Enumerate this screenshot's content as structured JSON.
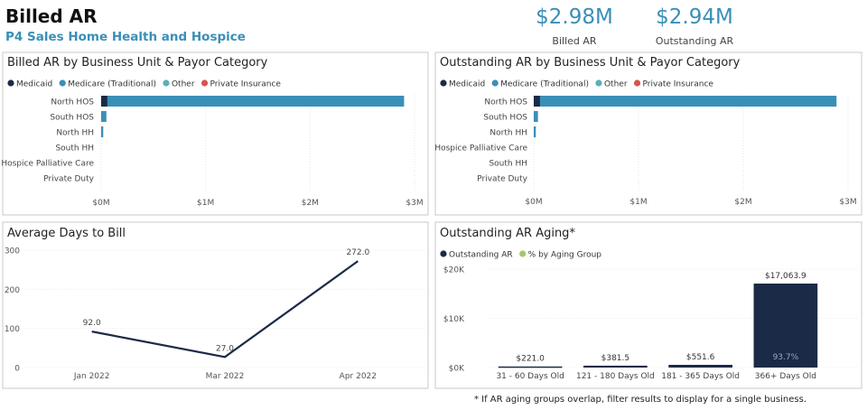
{
  "header": {
    "title": "Billed AR",
    "subtitle": "P4 Sales Home Health and Hospice"
  },
  "kpis": [
    {
      "value": "$2.98M",
      "label": "Billed AR"
    },
    {
      "value": "$2.94M",
      "label": "Outstanding AR"
    }
  ],
  "chart_data": [
    {
      "type": "hbar_stacked",
      "title": "Billed AR by Business Unit & Payor Category",
      "categories": [
        "North HOS",
        "South HOS",
        "North HH",
        "South HH",
        "Hospice Palliative Care",
        "Private Duty"
      ],
      "series": [
        {
          "name": "Medicaid",
          "color": "#1b2a47",
          "values": [
            0.06,
            0,
            0,
            0,
            0,
            0
          ]
        },
        {
          "name": "Medicare (Traditional)",
          "color": "#3a8fb7",
          "values": [
            2.84,
            0.05,
            0.02,
            0,
            0,
            0
          ]
        },
        {
          "name": "Other",
          "color": "#5ab0b8",
          "values": [
            0,
            0,
            0,
            0,
            0,
            0
          ]
        },
        {
          "name": "Private Insurance",
          "color": "#d9534f",
          "values": [
            0,
            0,
            0,
            0,
            0,
            0
          ]
        }
      ],
      "xlim": [
        0,
        3
      ],
      "xticks": [
        {
          "value": 0,
          "label": "$0M"
        },
        {
          "value": 1,
          "label": "$1M"
        },
        {
          "value": 2,
          "label": "$2M"
        },
        {
          "value": 3,
          "label": "$3M"
        }
      ],
      "grid": true
    },
    {
      "type": "hbar_stacked",
      "title": "Outstanding AR by Business Unit & Payor Category",
      "categories": [
        "North HOS",
        "South HOS",
        "North HH",
        "Hospice Palliative Care",
        "South HH",
        "Private Duty"
      ],
      "series": [
        {
          "name": "Medicaid",
          "color": "#1b2a47",
          "values": [
            0.06,
            0,
            0,
            0,
            0,
            0
          ]
        },
        {
          "name": "Medicare (Traditional)",
          "color": "#3a8fb7",
          "values": [
            2.83,
            0.04,
            0.02,
            0,
            0,
            0
          ]
        },
        {
          "name": "Other",
          "color": "#5ab0b8",
          "values": [
            0,
            0,
            0,
            0,
            0,
            0
          ]
        },
        {
          "name": "Private Insurance",
          "color": "#d9534f",
          "values": [
            0,
            0,
            0,
            0,
            0,
            0
          ]
        }
      ],
      "xlim": [
        0,
        3
      ],
      "xticks": [
        {
          "value": 0,
          "label": "$0M"
        },
        {
          "value": 1,
          "label": "$1M"
        },
        {
          "value": 2,
          "label": "$2M"
        },
        {
          "value": 3,
          "label": "$3M"
        }
      ],
      "grid": true
    },
    {
      "type": "line",
      "title": "Average Days to Bill",
      "categories": [
        "Jan 2022",
        "Mar 2022",
        "Apr 2022"
      ],
      "values": [
        92,
        27,
        272
      ],
      "value_labels": [
        "92.0",
        "27.0",
        "272.0"
      ],
      "color": "#1b2a47",
      "ylim": [
        0,
        300
      ],
      "yticks": [
        0,
        100,
        200,
        300
      ],
      "grid": true
    },
    {
      "type": "column",
      "title": "Outstanding AR Aging*",
      "categories": [
        "31 - 60 Days Old",
        "121 - 180 Days Old",
        "181 - 365 Days Old",
        "366+ Days Old"
      ],
      "series": [
        {
          "name": "Outstanding AR",
          "color": "#1b2a47",
          "values": [
            221.0,
            381.5,
            551.6,
            17063.9
          ],
          "value_labels": [
            "$221.0",
            "$381.5",
            "$551.6",
            "$17,063.9"
          ]
        },
        {
          "name": "% by Aging Group",
          "color": "#a4c86b",
          "values": [
            null,
            null,
            null,
            93.7
          ],
          "value_labels": [
            null,
            null,
            null,
            "93.7%"
          ]
        }
      ],
      "ylim": [
        0,
        20000
      ],
      "yticks": [
        {
          "value": 0,
          "label": "$0K"
        },
        {
          "value": 10000,
          "label": "$10K"
        },
        {
          "value": 20000,
          "label": "$20K"
        }
      ],
      "grid": true
    }
  ],
  "footnote": "* If AR aging groups overlap, filter results to display for a single business."
}
